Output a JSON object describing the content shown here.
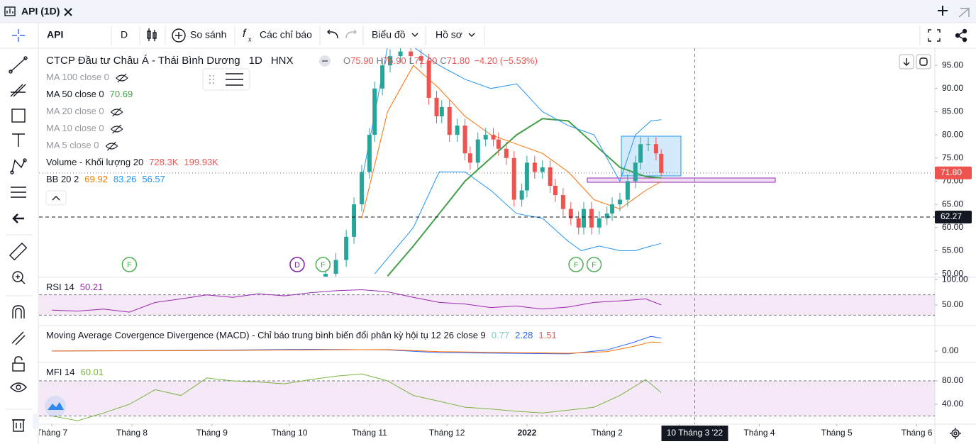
{
  "window": {
    "title": "API (1D)"
  },
  "toolbar": {
    "symbol": "API",
    "interval": "D",
    "compare": "So sánh",
    "indicators": "Các chỉ báo",
    "chart_menu": "Biểu đồ",
    "profile": "Hồ sơ"
  },
  "chart_data": [
    {
      "type": "candlestick",
      "title": "CTCP Đầu tư Châu Á - Thái Bình Dương",
      "interval": "1D",
      "exchange": "HNX",
      "ohlc_legend": [
        {
          "key": "O",
          "value": "75.90"
        },
        {
          "key": "H",
          "value": "76.90"
        },
        {
          "key": "L",
          "value": "71.00"
        },
        {
          "key": "C",
          "value": "71.80"
        }
      ],
      "change": "−4.20 (−5.53%)",
      "up_color": "#26a69a",
      "down_color": "#ef5350",
      "x": [
        106,
        110,
        114,
        117,
        120,
        123,
        125,
        128,
        131,
        135,
        139,
        143,
        146,
        149,
        151,
        154,
        157,
        160,
        162,
        165,
        168,
        171,
        173,
        176,
        179,
        182,
        184,
        187,
        190,
        193,
        195,
        198,
        201,
        204,
        206,
        209,
        212,
        215,
        217,
        220,
        223,
        226,
        228,
        231,
        234,
        236
      ],
      "open": [
        48,
        50,
        53,
        58,
        65,
        72,
        80,
        90,
        95,
        97,
        98,
        97,
        96,
        88,
        84,
        86,
        80,
        82,
        76,
        74,
        79,
        80,
        79,
        77,
        75,
        66,
        68,
        74,
        72,
        73,
        69,
        67,
        64,
        62,
        60,
        64,
        60,
        62,
        63,
        65,
        66,
        70,
        74,
        78,
        78,
        75.9
      ],
      "high": [
        51.5,
        54.5,
        59.5,
        66.5,
        73.5,
        81.5,
        91.5,
        96.5,
        98.5,
        99.5,
        99.5,
        98.5,
        97.5,
        89.5,
        87.5,
        87.5,
        83.5,
        83.5,
        77.5,
        80.5,
        81.5,
        81.5,
        80.5,
        78.5,
        76.5,
        69.5,
        75.5,
        75.5,
        74.5,
        74.5,
        70.5,
        68.5,
        65.5,
        63.5,
        65.5,
        65.5,
        63.5,
        64.5,
        66.5,
        67.5,
        71.5,
        75.5,
        79.5,
        79.5,
        79.5,
        76.9
      ],
      "low": [
        46.5,
        48.5,
        51.5,
        56.5,
        63.5,
        70.5,
        78.5,
        88.5,
        93.5,
        95.5,
        95.5,
        94.5,
        86.5,
        82.5,
        82.5,
        78.5,
        78.5,
        74.5,
        72.5,
        72.5,
        77.5,
        77.5,
        75.5,
        73.5,
        64.5,
        64.5,
        66.5,
        70.5,
        70.5,
        67.5,
        65.5,
        62.5,
        60.5,
        58.5,
        58.5,
        58.5,
        58.5,
        60.5,
        61.5,
        63.5,
        64.5,
        68.5,
        72.5,
        76.5,
        74.5,
        71
      ],
      "close": [
        50,
        53,
        58,
        65,
        72,
        80,
        90,
        95,
        97,
        98,
        97,
        96,
        88,
        84,
        86,
        80,
        82,
        76,
        74,
        79,
        80,
        79,
        77,
        75,
        66,
        68,
        74,
        72,
        73,
        69,
        67,
        64,
        62,
        60,
        64,
        60,
        62,
        63,
        65,
        66,
        70,
        74,
        78,
        78,
        76,
        71.8
      ],
      "xlim": [
        -5,
        342
      ],
      "xticks": [
        {
          "value": 0,
          "label": "Tháng 7"
        },
        {
          "value": 31,
          "label": "Tháng 8"
        },
        {
          "value": 62,
          "label": "Tháng 9"
        },
        {
          "value": 92,
          "label": "Tháng 10"
        },
        {
          "value": 123,
          "label": "Tháng 11"
        },
        {
          "value": 153,
          "label": "Tháng 12"
        },
        {
          "value": 184,
          "label": "2022",
          "bold": true
        },
        {
          "value": 215,
          "label": "Tháng 2"
        },
        {
          "value": 243,
          "label": "Tháng 3"
        },
        {
          "value": 274,
          "label": "Tháng 4"
        },
        {
          "value": 304,
          "label": "Tháng 5"
        },
        {
          "value": 335,
          "label": "Tháng 6"
        }
      ],
      "ylim": [
        49.4,
        98.7
      ],
      "yticks": [
        {
          "value": 50,
          "label": "50.00"
        },
        {
          "value": 55,
          "label": "55.00"
        },
        {
          "value": 60,
          "label": "60.00"
        },
        {
          "value": 65,
          "label": "65.00"
        },
        {
          "value": 70,
          "label": "70.00"
        },
        {
          "value": 75,
          "label": "75.00"
        },
        {
          "value": 80,
          "label": "80.00"
        },
        {
          "value": 85,
          "label": "85.00"
        },
        {
          "value": 90,
          "label": "90.00"
        },
        {
          "value": 95,
          "label": "95.00"
        }
      ],
      "price_lines": [
        {
          "value": 71.8,
          "label": "71.80",
          "color": "#ef5350",
          "dash": "1 3"
        },
        {
          "value": 62.27,
          "label": "62.27",
          "color": "#131722",
          "dash": "5 4"
        }
      ],
      "crosshair": {
        "value": 249,
        "label": "10 Tháng 3 '22"
      },
      "legend": [
        {
          "label": "MA 100 close 0",
          "hidden": true,
          "values": [],
          "colors": []
        },
        {
          "label": "MA 50 close 0",
          "hidden": false,
          "values": [
            "70.69"
          ],
          "colors": [
            "#43a047"
          ]
        },
        {
          "label": "MA 20 close 0",
          "hidden": true,
          "values": [],
          "colors": []
        },
        {
          "label": "MA 10 close 0",
          "hidden": true,
          "values": [],
          "colors": []
        },
        {
          "label": "MA 5 close 0",
          "hidden": true,
          "values": [],
          "colors": []
        },
        {
          "label": "Volume - Khối lượng 20",
          "hidden": false,
          "values": [
            "728.3K",
            "199.93K"
          ],
          "colors": [
            "#ef5350",
            "#ef5350"
          ]
        },
        {
          "label": "BB 20 2",
          "hidden": false,
          "values": [
            "69.92",
            "83.26",
            "56.57"
          ],
          "colors": [
            "#f57c00",
            "#2196f3",
            "#2196f3"
          ]
        }
      ],
      "lines": [
        {
          "color": "#43a047",
          "width": 2,
          "x": [
            130,
            140,
            150,
            160,
            170,
            180,
            190,
            200,
            210,
            220,
            230,
            236
          ],
          "values": [
            49.5,
            56,
            63,
            70,
            75,
            80,
            83.5,
            83,
            78,
            73,
            71,
            70.69
          ]
        },
        {
          "color": "#2196f3",
          "width": 1,
          "x": [
            120,
            130,
            140,
            150,
            160,
            170,
            180,
            190,
            200,
            210,
            215,
            220,
            226,
            232,
            236
          ],
          "values": [
            70,
            99,
            99,
            95,
            92,
            90,
            91,
            85,
            82,
            80,
            75,
            70,
            80,
            83,
            83.26
          ]
        },
        {
          "color": "#2196f3",
          "width": 1,
          "x": [
            125,
            140,
            150,
            160,
            170,
            180,
            190,
            200,
            205,
            212,
            220,
            226,
            232,
            236
          ],
          "values": [
            50,
            60,
            72,
            72,
            68,
            63,
            62,
            57,
            55,
            56,
            55,
            55,
            56,
            56.57
          ]
        },
        {
          "color": "#ff6d00",
          "width": 1,
          "x": [
            120,
            130,
            140,
            150,
            160,
            170,
            180,
            190,
            200,
            210,
            220,
            230,
            236
          ],
          "values": [
            62,
            85,
            95,
            90,
            84,
            80,
            78,
            76,
            72,
            66,
            64,
            68,
            69.92
          ]
        }
      ],
      "events": [
        {
          "x": 30,
          "label": "F",
          "color": "#4caf50"
        },
        {
          "x": 95,
          "label": "D",
          "color": "#7b1fa2"
        },
        {
          "x": 105,
          "label": "F",
          "color": "#4caf50"
        },
        {
          "x": 203,
          "label": "F",
          "color": "#4caf50"
        },
        {
          "x": 210,
          "label": "F",
          "color": "#4caf50"
        }
      ]
    },
    {
      "type": "line",
      "title": "RSI 14",
      "value_labels": [
        "50.21"
      ],
      "value_colors": [
        "#9c27b0"
      ],
      "ylim": [
        11,
        103
      ],
      "yticks": [
        {
          "value": 50,
          "label": "50.00"
        },
        {
          "value": 100,
          "label": "100.00"
        }
      ],
      "bands": [
        30,
        70
      ],
      "band_color": "#9c27b0",
      "series": [
        {
          "color": "#9c27b0",
          "x": [
            0,
            10,
            20,
            30,
            40,
            50,
            60,
            70,
            80,
            90,
            100,
            110,
            120,
            130,
            140,
            150,
            160,
            170,
            180,
            190,
            200,
            210,
            220,
            230,
            236
          ],
          "values": [
            40,
            38,
            42,
            36,
            55,
            62,
            70,
            65,
            72,
            68,
            74,
            78,
            80,
            76,
            65,
            55,
            52,
            45,
            48,
            42,
            46,
            55,
            58,
            62,
            50.21
          ]
        }
      ]
    },
    {
      "type": "line",
      "title": "Moving Average Covergence Divergence (MACD) - Chỉ báo trung bình biến đổi phân kỳ hội tụ 12 26 close 9",
      "value_labels": [
        "0.77",
        "2.28",
        "1.51"
      ],
      "value_colors": [
        "#80cbc4",
        "#2962ff",
        "#ef5350"
      ],
      "ylim": [
        -1.9,
        4.4
      ],
      "yticks": [
        {
          "value": 0,
          "label": "0.00"
        }
      ],
      "series": [
        {
          "color": "#2962ff",
          "x": [
            0,
            50,
            100,
            130,
            150,
            180,
            200,
            215,
            225,
            232,
            236
          ],
          "values": [
            0,
            0.1,
            0.3,
            0.2,
            -0.3,
            -0.4,
            -0.5,
            0.2,
            1.5,
            2.6,
            2.28
          ]
        },
        {
          "color": "#ff6d00",
          "x": [
            0,
            50,
            100,
            130,
            150,
            180,
            200,
            215,
            225,
            232,
            236
          ],
          "values": [
            0,
            0.05,
            0.2,
            0.25,
            -0.1,
            -0.3,
            -0.4,
            -0.1,
            0.8,
            1.6,
            1.51
          ]
        }
      ]
    },
    {
      "type": "line",
      "title": "MFI 14",
      "value_labels": [
        "60.01"
      ],
      "value_colors": [
        "#7cb342"
      ],
      "ylim": [
        6,
        110.3
      ],
      "yticks": [
        {
          "value": 40,
          "label": "40.00"
        },
        {
          "value": 80,
          "label": "80.00"
        }
      ],
      "bands": [
        20,
        80
      ],
      "band_color": "#9c27b0",
      "series": [
        {
          "color": "#7cb342",
          "x": [
            0,
            10,
            20,
            30,
            40,
            50,
            60,
            70,
            80,
            90,
            100,
            110,
            120,
            130,
            140,
            150,
            160,
            170,
            180,
            190,
            200,
            210,
            220,
            230,
            236
          ],
          "values": [
            20,
            12,
            25,
            40,
            65,
            55,
            85,
            80,
            78,
            75,
            82,
            88,
            92,
            80,
            55,
            45,
            35,
            32,
            28,
            25,
            30,
            35,
            55,
            82,
            60.01
          ]
        }
      ]
    }
  ]
}
